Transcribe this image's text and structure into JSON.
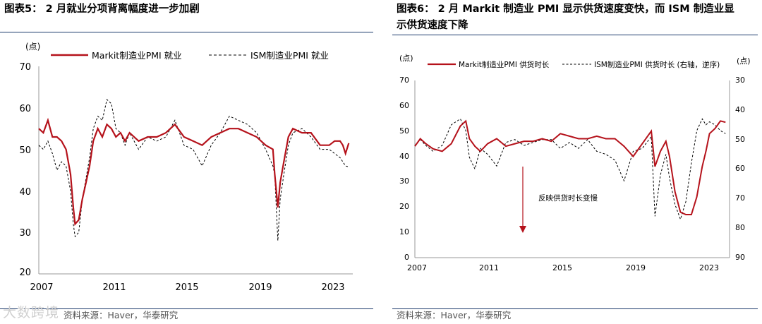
{
  "colors": {
    "solid": "#b5121b",
    "dashed": "#000000",
    "rule": "#1b3a6b"
  },
  "left": {
    "title": "图表5：  2 月就业分项背离幅度进一步加剧",
    "source": "资料来源：Haver，华泰研究",
    "watermark": "大数跨境",
    "chart_data": {
      "type": "line",
      "title": "2 月就业分项背离幅度进一步加剧",
      "ylabel": "(点)",
      "ylim": [
        20,
        70
      ],
      "yticks": [
        "20",
        "30",
        "40",
        "50",
        "60",
        "70"
      ],
      "xlim": [
        2007,
        2024.3
      ],
      "xticks": [
        "2007",
        "2011",
        "2015",
        "2019",
        "2023"
      ],
      "legend_placement": "top",
      "series": [
        {
          "name": "Markit制造业PMI 就业",
          "style": "solid",
          "x": [
            2007.0,
            2007.25,
            2007.5,
            2007.75,
            2008.0,
            2008.25,
            2008.5,
            2008.75,
            2008.9,
            2009.0,
            2009.2,
            2009.4,
            2009.6,
            2009.8,
            2010.0,
            2010.25,
            2010.5,
            2010.75,
            2011.0,
            2011.25,
            2011.5,
            2011.75,
            2012.0,
            2012.5,
            2013.0,
            2013.5,
            2014.0,
            2014.5,
            2015.0,
            2015.5,
            2016.0,
            2016.5,
            2017.0,
            2017.5,
            2018.0,
            2018.5,
            2019.0,
            2019.5,
            2019.9,
            2020.0,
            2020.17,
            2020.3,
            2020.5,
            2020.75,
            2021.0,
            2021.5,
            2022.0,
            2022.5,
            2023.0,
            2023.3,
            2023.6,
            2023.75,
            2023.9,
            2024.08
          ],
          "values": [
            55,
            54,
            57,
            53,
            53,
            52,
            50,
            44,
            36,
            32,
            33,
            38,
            42,
            46,
            52,
            55,
            53,
            56,
            55,
            53,
            54,
            52,
            54,
            52,
            53,
            53,
            54,
            56,
            53,
            52,
            51,
            53,
            54,
            55,
            55,
            54,
            53,
            51,
            50,
            44,
            36,
            42,
            47,
            53,
            55,
            54,
            54,
            51,
            51,
            52,
            52,
            51,
            49,
            51.5
          ]
        },
        {
          "name": "ISM制造业PMI 就业",
          "style": "dashed",
          "x": [
            2007.0,
            2007.25,
            2007.5,
            2007.75,
            2008.0,
            2008.25,
            2008.5,
            2008.75,
            2008.9,
            2009.0,
            2009.2,
            2009.4,
            2009.6,
            2009.8,
            2010.0,
            2010.25,
            2010.5,
            2010.75,
            2011.0,
            2011.25,
            2011.5,
            2011.75,
            2012.0,
            2012.5,
            2013.0,
            2013.5,
            2014.0,
            2014.5,
            2015.0,
            2015.5,
            2016.0,
            2016.5,
            2017.0,
            2017.5,
            2018.0,
            2018.5,
            2019.0,
            2019.5,
            2019.9,
            2020.0,
            2020.17,
            2020.3,
            2020.5,
            2020.75,
            2021.0,
            2021.5,
            2022.0,
            2022.5,
            2023.0,
            2023.3,
            2023.6,
            2023.75,
            2023.9,
            2024.08
          ],
          "values": [
            51,
            50,
            52,
            49,
            45,
            47,
            46,
            40,
            32,
            29,
            30,
            38,
            43,
            48,
            55,
            58,
            57,
            62,
            61,
            55,
            54,
            51,
            54,
            50,
            53,
            52,
            53,
            57,
            51,
            50,
            46,
            51,
            54,
            58,
            57,
            56,
            54,
            50,
            46,
            44,
            28,
            38,
            44,
            51,
            54,
            55,
            53,
            50,
            50,
            49,
            48,
            47,
            46,
            45.8
          ]
        }
      ]
    }
  },
  "right": {
    "title_line1": "图表6：  2 月 Markit 制造业 PMI 显示供货速度变快，而 ISM 制造业显",
    "title_line2": "示供货速度下降",
    "source": "资料来源：Haver，华泰研究",
    "chart_data": {
      "type": "line",
      "title": "2 月 Markit 制造业 PMI 显示供货速度变快，而 ISM 制造业显示供货速度下降",
      "ylabel": "(点)",
      "ylabel_right": "(点)",
      "ylim": [
        0,
        70
      ],
      "yticks": [
        "0",
        "10",
        "20",
        "30",
        "40",
        "50",
        "60",
        "70"
      ],
      "ylim_right": [
        90,
        30
      ],
      "yticks_right": [
        "30",
        "40",
        "50",
        "60",
        "70",
        "80",
        "90"
      ],
      "xlim": [
        2007,
        2024.3
      ],
      "xticks": [
        "2007",
        "2011",
        "2015",
        "2019",
        "2023"
      ],
      "annotation": "反映供货时长变慢",
      "legend_placement": "top",
      "series": [
        {
          "name": "Markit制造业PMI 供货时长",
          "style": "solid",
          "axis": "left",
          "x": [
            2007.0,
            2007.3,
            2007.6,
            2008.0,
            2008.5,
            2009.0,
            2009.5,
            2009.8,
            2010.0,
            2010.3,
            2010.6,
            2011.0,
            2011.5,
            2012.0,
            2012.5,
            2013.0,
            2013.5,
            2014.0,
            2014.5,
            2015.0,
            2015.5,
            2016.0,
            2016.5,
            2017.0,
            2017.5,
            2018.0,
            2018.5,
            2019.0,
            2019.5,
            2020.0,
            2020.2,
            2020.5,
            2020.8,
            2021.0,
            2021.3,
            2021.6,
            2021.9,
            2022.2,
            2022.5,
            2022.8,
            2023.0,
            2023.2,
            2023.5,
            2023.8,
            2024.08
          ],
          "values": [
            44,
            47,
            45,
            43,
            42,
            45,
            52,
            54,
            47,
            44,
            42,
            45,
            47,
            44,
            45,
            46,
            46,
            47,
            46,
            49,
            48,
            47,
            47,
            48,
            47,
            47,
            44,
            40,
            45,
            50,
            36,
            42,
            46,
            40,
            26,
            18,
            17,
            17,
            24,
            36,
            42,
            49,
            51,
            54,
            53.5
          ]
        },
        {
          "name": "ISM制造业PMI 供货时长 (右轴，逆序)",
          "style": "dashed",
          "axis": "right",
          "x": [
            2007.0,
            2007.3,
            2007.6,
            2008.0,
            2008.5,
            2009.0,
            2009.5,
            2009.8,
            2010.0,
            2010.3,
            2010.6,
            2011.0,
            2011.5,
            2012.0,
            2012.5,
            2013.0,
            2013.5,
            2014.0,
            2014.5,
            2015.0,
            2015.5,
            2016.0,
            2016.5,
            2017.0,
            2017.5,
            2018.0,
            2018.5,
            2019.0,
            2019.5,
            2020.0,
            2020.2,
            2020.5,
            2020.8,
            2021.0,
            2021.3,
            2021.6,
            2021.9,
            2022.2,
            2022.5,
            2022.8,
            2023.0,
            2023.2,
            2023.5,
            2023.8,
            2024.08
          ],
          "values": [
            52,
            50,
            52,
            54,
            52,
            45,
            43,
            47,
            56,
            60,
            53,
            55,
            59,
            51,
            50,
            52,
            51,
            50,
            50,
            53,
            51,
            53,
            50,
            54,
            55,
            57,
            64,
            54,
            53,
            49,
            76,
            62,
            55,
            63,
            72,
            77,
            71,
            58,
            47,
            43,
            45,
            44,
            45,
            47,
            48
          ]
        }
      ]
    }
  }
}
